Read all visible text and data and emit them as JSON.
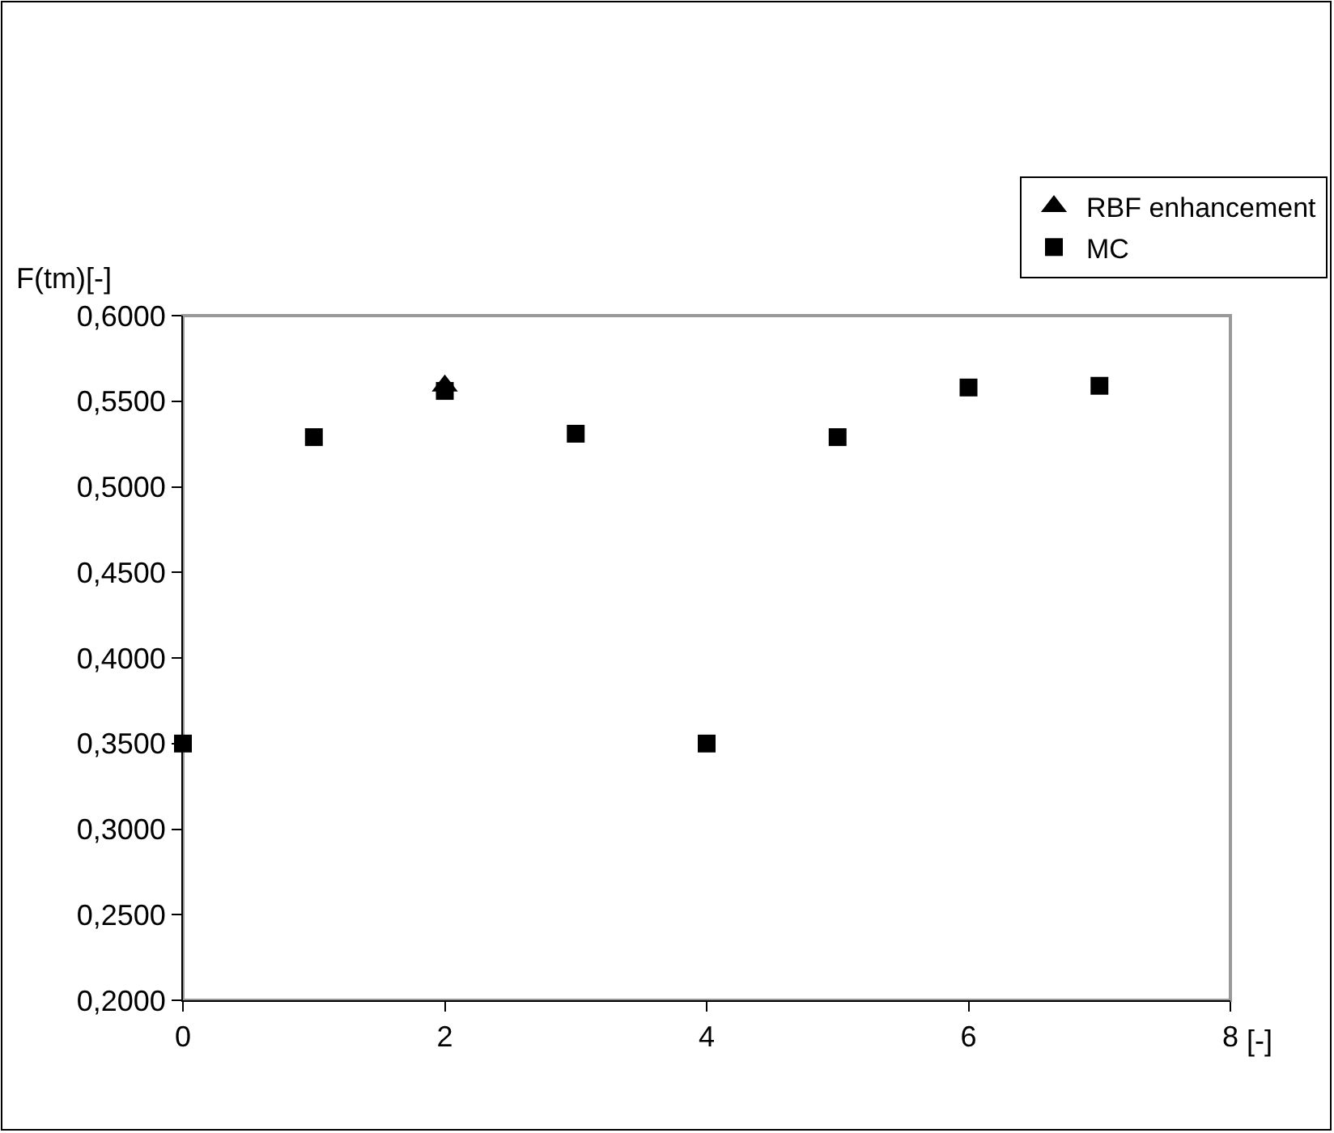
{
  "chart_data": {
    "type": "scatter",
    "xlabel": "[-]",
    "ylabel": "F(tm)[-]",
    "x": [
      0,
      1,
      2,
      3,
      4,
      5,
      6,
      7
    ],
    "series": [
      {
        "name": "RBF enhancement",
        "color": "#000000",
        "marker": "triangle",
        "values": [
          null,
          null,
          0.559,
          null,
          null,
          null,
          null,
          null
        ]
      },
      {
        "name": "MC",
        "color": "#000000",
        "marker": "square",
        "values": [
          0.35,
          0.529,
          0.556,
          0.531,
          0.35,
          0.529,
          0.558,
          0.559
        ]
      }
    ],
    "xlim": [
      0,
      8
    ],
    "xticks": [
      0,
      2,
      4,
      6,
      8
    ],
    "ylim": [
      0.2,
      0.6
    ],
    "yticks": [
      {
        "value": 0.2,
        "label": "0,2000"
      },
      {
        "value": 0.25,
        "label": "0,2500"
      },
      {
        "value": 0.3,
        "label": "0,3000"
      },
      {
        "value": 0.35,
        "label": "0,3500"
      },
      {
        "value": 0.4,
        "label": "0,4000"
      },
      {
        "value": 0.45,
        "label": "0,4500"
      },
      {
        "value": 0.5,
        "label": "0,5000"
      },
      {
        "value": 0.55,
        "label": "0,5500"
      },
      {
        "value": 0.6,
        "label": "0,6000"
      }
    ],
    "grid": false,
    "legend": "top right"
  }
}
